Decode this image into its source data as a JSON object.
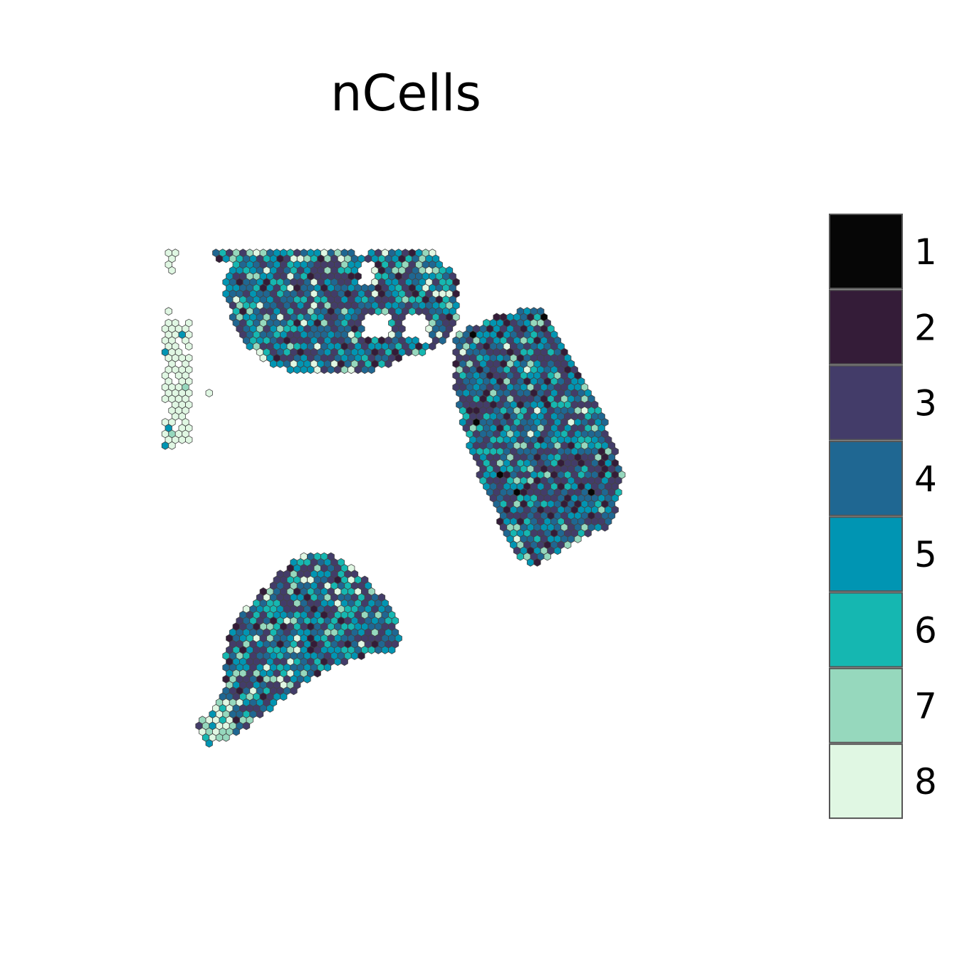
{
  "chart_data": {
    "type": "heatmap",
    "title": "nCells",
    "legend": {
      "position": "right",
      "entries": [
        {
          "label": "1",
          "color": "#060606"
        },
        {
          "label": "2",
          "color": "#341c38"
        },
        {
          "label": "3",
          "color": "#433c69"
        },
        {
          "label": "4",
          "color": "#1f6792"
        },
        {
          "label": "5",
          "color": "#0095b3"
        },
        {
          "label": "6",
          "color": "#15b7b1"
        },
        {
          "label": "7",
          "color": "#96d8bd"
        },
        {
          "label": "8",
          "color": "#e0f7e3"
        }
      ]
    },
    "sections": [
      {
        "name": "",
        "composition_weights": {
          "1": 0,
          "2": 8,
          "3": 26,
          "4": 24,
          "5": 22,
          "6": 12,
          "7": 5,
          "8": 3
        }
      },
      {
        "name": "",
        "composition_weights": {
          "1": 1,
          "2": 10,
          "3": 28,
          "4": 24,
          "5": 17,
          "6": 13,
          "7": 6,
          "8": 1
        }
      },
      {
        "name": "",
        "composition_weights": {
          "1": 0,
          "2": 6,
          "3": 24,
          "4": 22,
          "5": 18,
          "6": 16,
          "7": 9,
          "8": 5
        }
      },
      {
        "name": "",
        "composition_weights": {
          "1": 0,
          "2": 0,
          "3": 0,
          "4": 0,
          "5": 5,
          "6": 0,
          "7": 5,
          "8": 90
        }
      }
    ]
  }
}
